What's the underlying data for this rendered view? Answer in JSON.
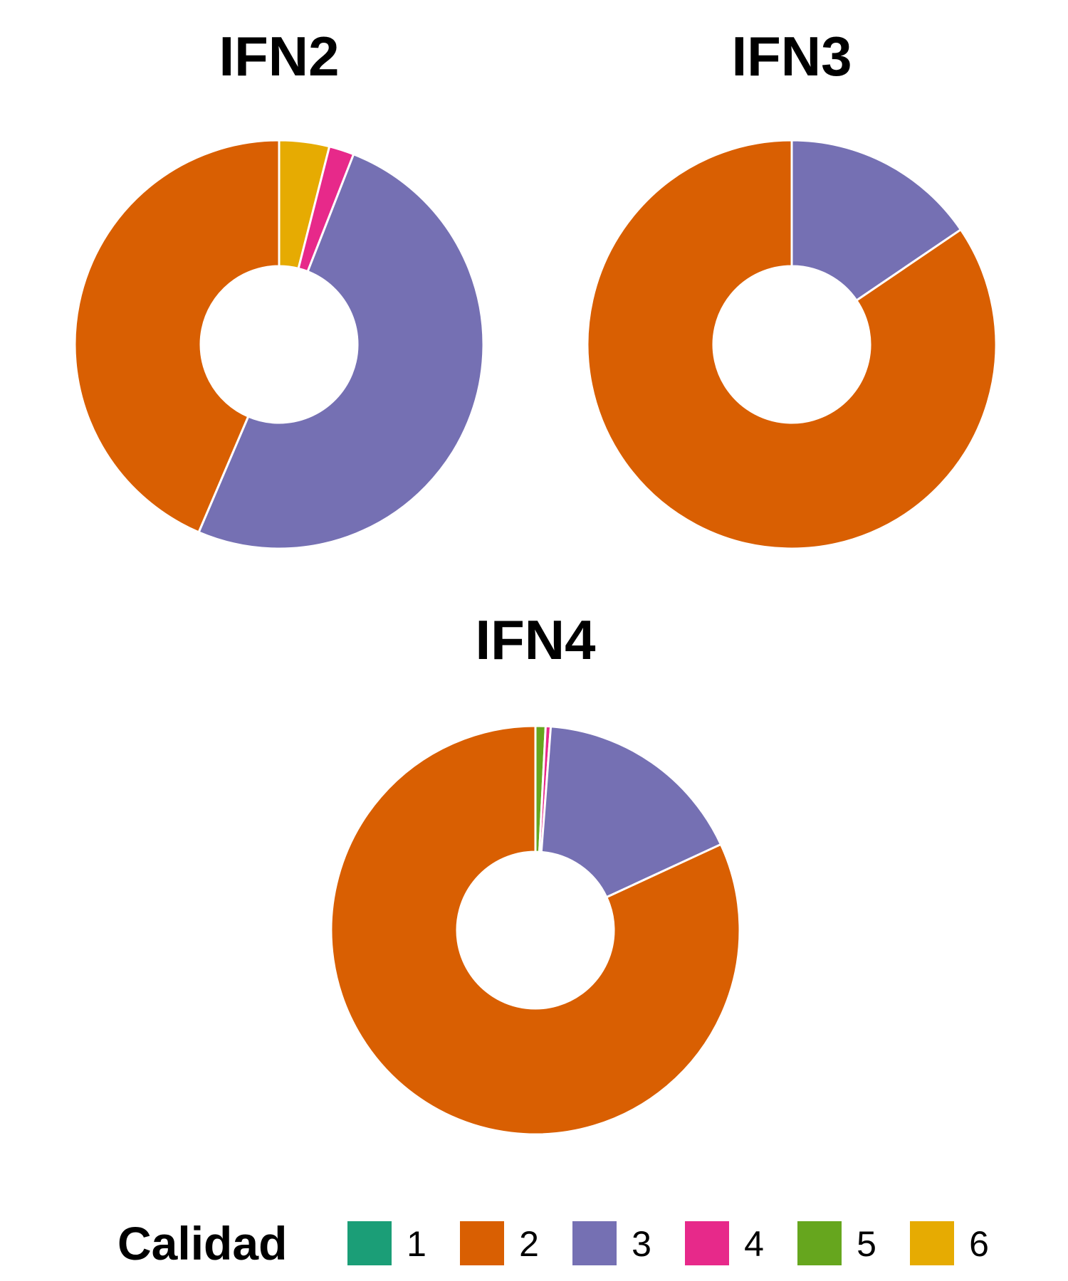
{
  "chart_data": [
    {
      "type": "pie",
      "variant": "donut",
      "title": "IFN2",
      "categories": [
        "1",
        "2",
        "3",
        "4",
        "5",
        "6"
      ],
      "values": [
        0,
        44,
        51,
        2,
        0,
        4
      ]
    },
    {
      "type": "pie",
      "variant": "donut",
      "title": "IFN3",
      "categories": [
        "1",
        "2",
        "3",
        "4",
        "5",
        "6"
      ],
      "values": [
        0,
        84.5,
        15.5,
        0,
        0,
        0
      ]
    },
    {
      "type": "pie",
      "variant": "donut",
      "title": "IFN4",
      "categories": [
        "1",
        "2",
        "3",
        "4",
        "5",
        "6"
      ],
      "values": [
        0,
        81.9,
        16.9,
        0.4,
        0.8,
        0
      ]
    }
  ],
  "legend": {
    "title": "Calidad",
    "position": "bottom",
    "items": [
      {
        "label": "1",
        "color": "#1B9E77"
      },
      {
        "label": "2",
        "color": "#D95F02"
      },
      {
        "label": "3",
        "color": "#7570B3"
      },
      {
        "label": "4",
        "color": "#E7298A"
      },
      {
        "label": "5",
        "color": "#66A61E"
      },
      {
        "label": "6",
        "color": "#E6AB02"
      }
    ]
  }
}
